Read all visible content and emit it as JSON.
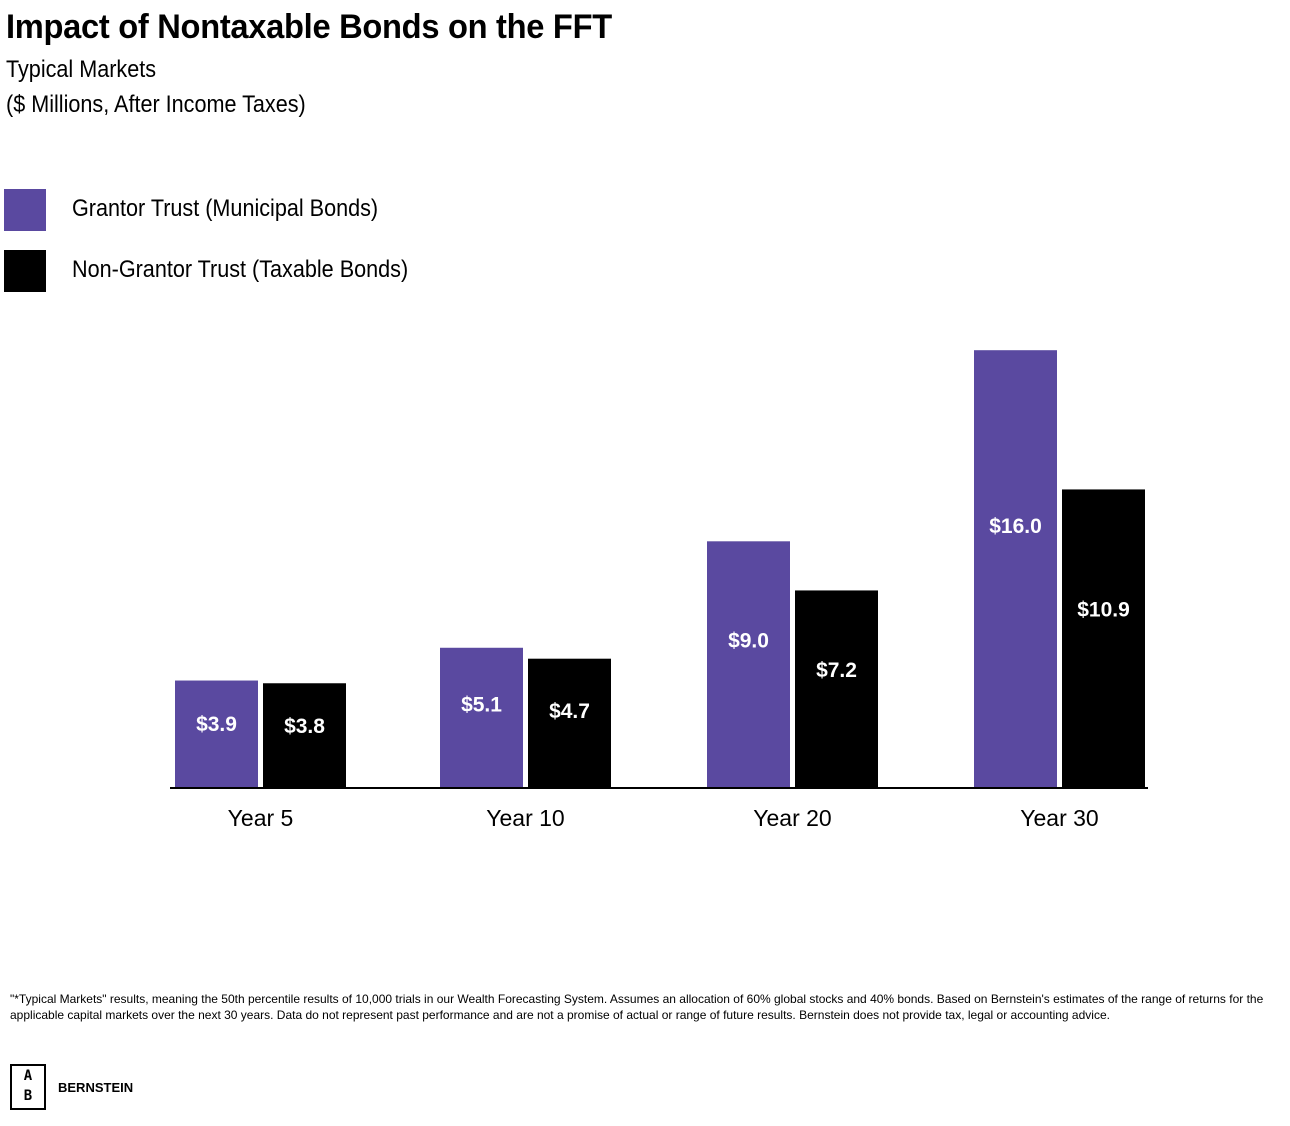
{
  "header": {
    "title": "Impact of Nontaxable Bonds on the FFT",
    "subtitle1": "Typical Markets",
    "subtitle2": "($ Millions, After Income Taxes)"
  },
  "legend": {
    "items": [
      {
        "label": "Grantor Trust (Municipal Bonds)",
        "color": "#5a49a0"
      },
      {
        "label": "Non-Grantor Trust (Taxable Bonds)",
        "color": "#000000"
      }
    ]
  },
  "chart_data": {
    "type": "bar",
    "title": "Impact of Nontaxable Bonds on the FFT",
    "subtitle": "Typical Markets ($ Millions, After Income Taxes)",
    "categories": [
      "Year 5",
      "Year 10",
      "Year 20",
      "Year 30"
    ],
    "series": [
      {
        "name": "Grantor Trust (Municipal Bonds)",
        "color": "#5a49a0",
        "values": [
          3.9,
          5.1,
          9.0,
          16.0
        ],
        "labels": [
          "$3.9",
          "$5.1",
          "$9.0",
          "$16.0"
        ]
      },
      {
        "name": "Non-Grantor Trust (Taxable Bonds)",
        "color": "#000000",
        "values": [
          3.8,
          4.7,
          7.2,
          10.9
        ],
        "labels": [
          "$3.8",
          "$4.7",
          "$7.2",
          "$10.9"
        ]
      }
    ],
    "ylim": [
      0,
      16.0
    ],
    "grid": false,
    "legend_position": "top-left"
  },
  "footer": {
    "footnote": "\"*Typical Markets\" results, meaning the 50th percentile results of 10,000 trials in our Wealth Forecasting System. Assumes an allocation of 60% global stocks and 40% bonds. Based on Bernstein's estimates of the range of returns for the applicable capital markets over the next 30 years. Data do not represent past performance and are not a promise of actual or range of future results. Bernstein does not provide tax, legal or accounting advice.",
    "logo_top": "A",
    "logo_bottom": "B",
    "brand": "BERNSTEIN"
  }
}
